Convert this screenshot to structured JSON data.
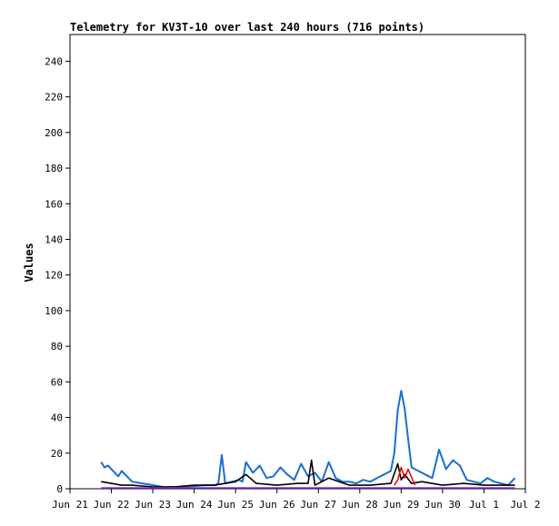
{
  "chart_data": {
    "type": "line",
    "title": "Telemetry for KV3T-10 over last 240 hours (716 points)",
    "xlabel": "",
    "ylabel": "Values",
    "ylim": [
      0,
      255
    ],
    "yticks": [
      0,
      20,
      40,
      60,
      80,
      100,
      120,
      140,
      160,
      180,
      200,
      220,
      240
    ],
    "xlim": [
      "2023-06-21T00:00",
      "2023-07-02T00:00"
    ],
    "xticks": [
      {
        "label": "Jun 21",
        "t": "2023-06-21T00:00"
      },
      {
        "label": "Jun 22",
        "t": "2023-06-22T00:00"
      },
      {
        "label": "Jun 23",
        "t": "2023-06-23T00:00"
      },
      {
        "label": "Jun 24",
        "t": "2023-06-24T00:00"
      },
      {
        "label": "Jun 25",
        "t": "2023-06-25T00:00"
      },
      {
        "label": "Jun 26",
        "t": "2023-06-26T00:00"
      },
      {
        "label": "Jun 27",
        "t": "2023-06-27T00:00"
      },
      {
        "label": "Jun 28",
        "t": "2023-06-28T00:00"
      },
      {
        "label": "Jun 29",
        "t": "2023-06-29T00:00"
      },
      {
        "label": "Jun 30",
        "t": "2023-06-30T00:00"
      },
      {
        "label": "Jul 1",
        "t": "2023-07-01T00:00"
      },
      {
        "label": "Jul 2",
        "t": "2023-07-02T00:00"
      }
    ],
    "grid": false,
    "series": [
      {
        "color": "#1a6fcf",
        "x": [
          "2023-06-21T18:00",
          "2023-06-21T20:00",
          "2023-06-21T22:00",
          "2023-06-22T00:00",
          "2023-06-22T02:00",
          "2023-06-22T04:00",
          "2023-06-22T06:00",
          "2023-06-22T08:00",
          "2023-06-22T10:00",
          "2023-06-22T12:00",
          "2023-06-22T18:00",
          "2023-06-23T06:00",
          "2023-06-23T18:00",
          "2023-06-24T06:00",
          "2023-06-24T12:00",
          "2023-06-24T14:00",
          "2023-06-24T16:00",
          "2023-06-24T18:00",
          "2023-06-24T22:00",
          "2023-06-25T02:00",
          "2023-06-25T04:00",
          "2023-06-25T06:00",
          "2023-06-25T10:00",
          "2023-06-25T14:00",
          "2023-06-25T18:00",
          "2023-06-25T22:00",
          "2023-06-26T02:00",
          "2023-06-26T06:00",
          "2023-06-26T10:00",
          "2023-06-26T14:00",
          "2023-06-26T18:00",
          "2023-06-26T22:00",
          "2023-06-27T02:00",
          "2023-06-27T06:00",
          "2023-06-27T10:00",
          "2023-06-27T14:00",
          "2023-06-27T18:00",
          "2023-06-27T22:00",
          "2023-06-28T02:00",
          "2023-06-28T06:00",
          "2023-06-28T10:00",
          "2023-06-28T14:00",
          "2023-06-28T18:00",
          "2023-06-28T20:00",
          "2023-06-28T22:00",
          "2023-06-29T00:00",
          "2023-06-29T02:00",
          "2023-06-29T04:00",
          "2023-06-29T06:00",
          "2023-06-29T10:00",
          "2023-06-29T14:00",
          "2023-06-29T18:00",
          "2023-06-29T22:00",
          "2023-06-30T02:00",
          "2023-06-30T06:00",
          "2023-06-30T10:00",
          "2023-06-30T14:00",
          "2023-06-30T18:00",
          "2023-06-30T22:00",
          "2023-07-01T02:00",
          "2023-07-01T06:00",
          "2023-07-01T10:00",
          "2023-07-01T14:00",
          "2023-07-01T18:00"
        ],
        "y": [
          15,
          12,
          13,
          11,
          9,
          7,
          10,
          8,
          6,
          4,
          3,
          1,
          1,
          2,
          2,
          3,
          19,
          3,
          4,
          5,
          4,
          15,
          9,
          13,
          6,
          7,
          12,
          8,
          5,
          14,
          7,
          9,
          4,
          15,
          6,
          4,
          4,
          3,
          5,
          4,
          6,
          8,
          10,
          20,
          44,
          55,
          45,
          28,
          12,
          10,
          8,
          6,
          22,
          11,
          16,
          13,
          5,
          4,
          3,
          6,
          4,
          3,
          2,
          6
        ]
      },
      {
        "color": "#000000",
        "x": [
          "2023-06-21T18:00",
          "2023-06-22T00:00",
          "2023-06-22T06:00",
          "2023-06-22T12:00",
          "2023-06-23T00:00",
          "2023-06-23T12:00",
          "2023-06-24T00:00",
          "2023-06-24T12:00",
          "2023-06-24T18:00",
          "2023-06-25T00:00",
          "2023-06-25T06:00",
          "2023-06-25T12:00",
          "2023-06-26T00:00",
          "2023-06-26T12:00",
          "2023-06-26T18:00",
          "2023-06-26T20:00",
          "2023-06-26T22:00",
          "2023-06-27T06:00",
          "2023-06-27T18:00",
          "2023-06-28T06:00",
          "2023-06-28T18:00",
          "2023-06-28T22:00",
          "2023-06-29T00:00",
          "2023-06-29T02:00",
          "2023-06-29T06:00",
          "2023-06-29T12:00",
          "2023-06-30T00:00",
          "2023-06-30T12:00",
          "2023-07-01T00:00",
          "2023-07-01T12:00",
          "2023-07-01T18:00"
        ],
        "y": [
          4,
          3,
          2,
          2,
          1,
          1,
          2,
          2,
          3,
          4,
          8,
          3,
          2,
          3,
          3,
          16,
          2,
          6,
          2,
          2,
          3,
          14,
          5,
          8,
          3,
          4,
          2,
          3,
          2,
          2,
          2
        ]
      },
      {
        "color": "#e01010",
        "x": [
          "2023-06-28T20:00",
          "2023-06-28T22:00",
          "2023-06-29T00:00",
          "2023-06-29T02:00",
          "2023-06-29T04:00",
          "2023-06-29T08:00"
        ],
        "y": [
          2,
          5,
          12,
          6,
          11,
          2
        ]
      },
      {
        "color": "#8a2be2",
        "x": [
          "2023-06-21T18:00",
          "2023-06-24T12:00",
          "2023-06-27T12:00",
          "2023-06-30T12:00",
          "2023-07-01T18:00"
        ],
        "y": [
          0.5,
          0.5,
          0.5,
          0.5,
          0.5
        ]
      }
    ]
  }
}
